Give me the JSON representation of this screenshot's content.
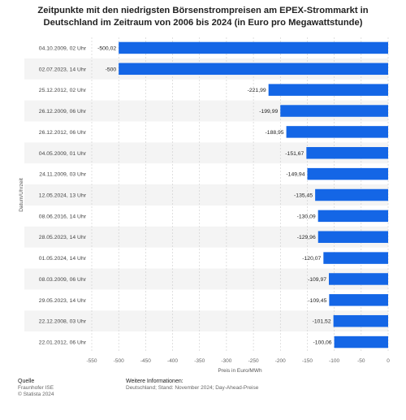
{
  "title_line1": "Zeitpunkte mit den niedrigsten Börsenstrompreisen am EPEX-Strommarkt in",
  "title_line2": "Deutschland im Zeitraum von 2006 bis 2024 (in Euro pro Megawattstunde)",
  "footer": {
    "source_label": "Quelle",
    "source_lines": [
      "Fraunhofer ISE",
      "© Statista 2024"
    ],
    "info_label": "Weitere Informationen:",
    "info_text": "Deutschland; Stand: November 2024; Day-Ahead-Preise"
  },
  "colors": {
    "bar": "#1466e6",
    "stripe": "#f4f4f4",
    "grid": "#cccccc"
  },
  "chart_data": {
    "type": "bar",
    "orientation": "horizontal",
    "xlabel": "Preis in Euro/MWh",
    "ylabel": "Datum/Uhrzeit",
    "xlim": [
      -550,
      0
    ],
    "xticks": [
      -550,
      -500,
      -450,
      -400,
      -350,
      -300,
      -250,
      -200,
      -150,
      -100,
      -50,
      0
    ],
    "grid": true,
    "categories": [
      "04.10.2009, 02 Uhr",
      "02.07.2023, 14 Uhr",
      "25.12.2012, 02 Uhr",
      "26.12.2009, 06 Uhr",
      "26.12.2012, 06 Uhr",
      "04.05.2009, 01 Uhr",
      "24.11.2009, 03 Uhr",
      "12.05.2024, 13 Uhr",
      "08.06.2016, 14 Uhr",
      "28.05.2023, 14 Uhr",
      "01.05.2024, 14 Uhr",
      "08.03.2009, 06 Uhr",
      "29.05.2023, 14 Uhr",
      "22.12.2008, 03 Uhr",
      "22.01.2012, 06 Uhr"
    ],
    "values": [
      -500.02,
      -500,
      -221.99,
      -199.99,
      -188.95,
      -151.67,
      -149.94,
      -135.45,
      -130.09,
      -129.96,
      -120.07,
      -109.97,
      -109.45,
      -101.52,
      -100.06
    ],
    "value_labels": [
      "-500,02",
      "-500",
      "-221,99",
      "-199,99",
      "-188,95",
      "-151,67",
      "-149,94",
      "-135,45",
      "-130,09",
      "-129,96",
      "-120,07",
      "-109,97",
      "-109,45",
      "-101,52",
      "-100,06"
    ]
  }
}
